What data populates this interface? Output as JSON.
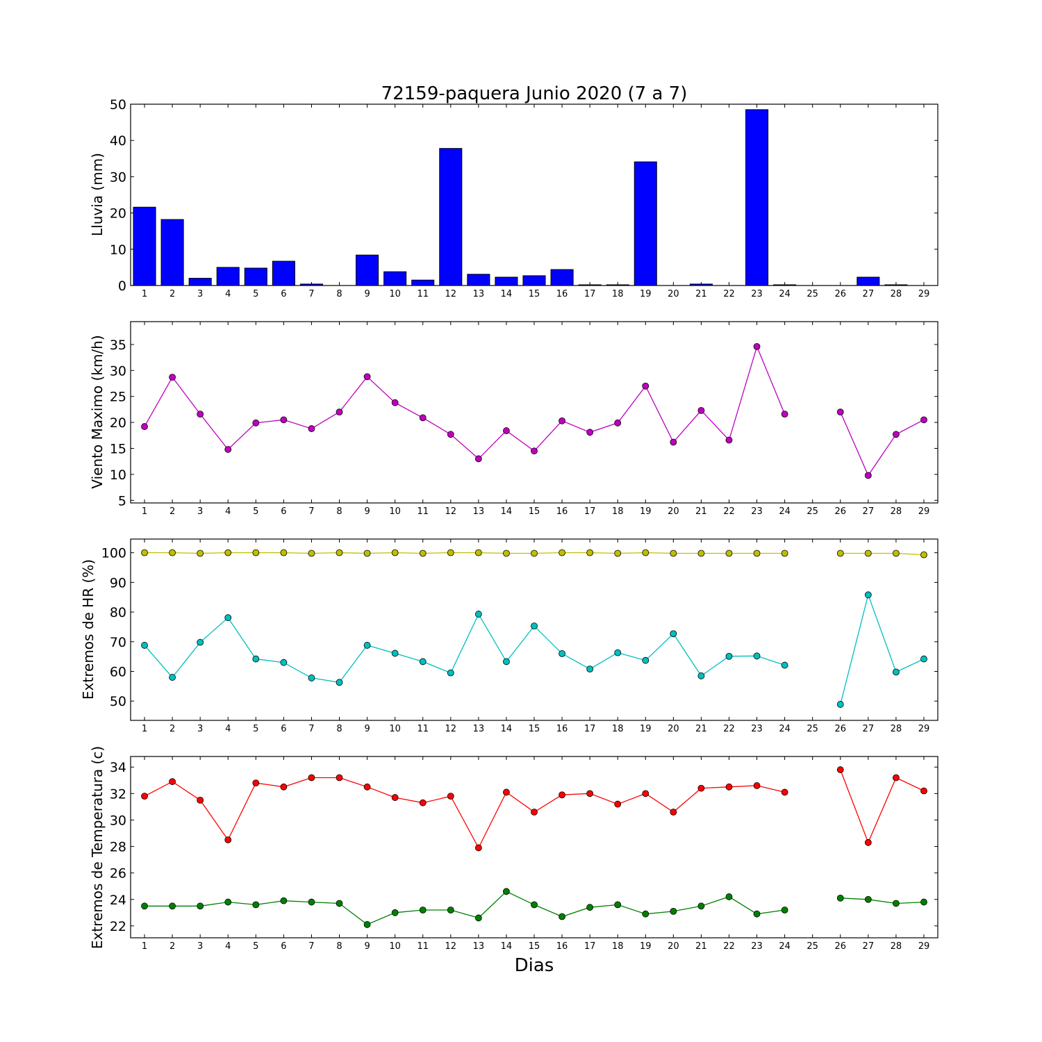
{
  "figure": {
    "title": "72159-paquera Junio 2020  (7 a 7)",
    "xlabel": "Dias"
  },
  "chart_data": [
    {
      "type": "bar",
      "name": "rain",
      "ylabel": "Lluvia (mm)",
      "ylim": [
        0,
        50
      ],
      "yticks": [
        0,
        10,
        20,
        30,
        40,
        50
      ],
      "color": "#0000ff",
      "categories": [
        1,
        2,
        3,
        4,
        5,
        6,
        7,
        8,
        9,
        10,
        11,
        12,
        13,
        14,
        15,
        16,
        17,
        18,
        19,
        20,
        21,
        22,
        23,
        24,
        25,
        26,
        27,
        28,
        29
      ],
      "values": [
        21.6,
        18.2,
        2.0,
        5.0,
        4.8,
        6.7,
        0.4,
        0,
        8.4,
        3.8,
        1.5,
        37.8,
        3.1,
        2.3,
        2.7,
        4.4,
        0.2,
        0.2,
        34.1,
        0,
        0.4,
        0,
        48.5,
        0.2,
        0,
        0,
        2.3,
        0.2,
        0
      ],
      "grid": false
    },
    {
      "type": "line",
      "name": "wind",
      "ylabel": "Viento Maximo (km/h)",
      "ylim": [
        4.5,
        39.4
      ],
      "yticks": [
        5,
        10,
        15,
        20,
        25,
        30,
        35
      ],
      "x": [
        1,
        2,
        3,
        4,
        5,
        6,
        7,
        8,
        9,
        10,
        11,
        12,
        13,
        14,
        15,
        16,
        17,
        18,
        19,
        20,
        21,
        22,
        23,
        24,
        25,
        26,
        27,
        28,
        29
      ],
      "series": [
        {
          "color": "#bf00bf",
          "values": [
            19.2,
            28.7,
            21.6,
            14.8,
            19.9,
            20.5,
            18.8,
            22.0,
            28.8,
            23.8,
            20.9,
            17.7,
            13.0,
            18.4,
            14.5,
            20.3,
            18.1,
            19.9,
            27.0,
            16.2,
            22.3,
            16.6,
            34.6,
            21.6,
            null,
            22.0,
            9.8,
            17.7,
            20.5
          ]
        }
      ],
      "grid": false
    },
    {
      "type": "line",
      "name": "humidity",
      "ylabel": "Extremos de HR (%)",
      "ylim": [
        43.5,
        104.6
      ],
      "yticks": [
        50,
        60,
        70,
        80,
        90,
        100
      ],
      "x": [
        1,
        2,
        3,
        4,
        5,
        6,
        7,
        8,
        9,
        10,
        11,
        12,
        13,
        14,
        15,
        16,
        17,
        18,
        19,
        20,
        21,
        22,
        23,
        24,
        25,
        26,
        27,
        28,
        29
      ],
      "series": [
        {
          "color": "#bfbf00",
          "values": [
            100,
            100,
            99.8,
            100,
            100,
            100,
            99.8,
            100,
            99.8,
            100,
            99.8,
            100,
            100,
            99.8,
            99.8,
            100,
            100,
            99.8,
            100,
            99.8,
            99.8,
            99.8,
            99.8,
            99.8,
            null,
            99.8,
            99.8,
            99.8,
            99.3
          ]
        },
        {
          "color": "#00bfbf",
          "values": [
            68.8,
            58.0,
            69.8,
            78.1,
            64.2,
            63.0,
            57.8,
            56.3,
            68.8,
            66.1,
            63.3,
            59.5,
            79.3,
            63.3,
            75.3,
            66.0,
            60.8,
            66.3,
            63.7,
            72.7,
            58.5,
            65.1,
            65.2,
            62.1,
            null,
            48.9,
            85.8,
            59.8,
            64.2
          ]
        }
      ],
      "grid": false
    },
    {
      "type": "line",
      "name": "temperature",
      "ylabel": "Extremos de Temperatura (c)",
      "ylim": [
        21.1,
        34.8
      ],
      "yticks": [
        22,
        24,
        26,
        28,
        30,
        32,
        34
      ],
      "x": [
        1,
        2,
        3,
        4,
        5,
        6,
        7,
        8,
        9,
        10,
        11,
        12,
        13,
        14,
        15,
        16,
        17,
        18,
        19,
        20,
        21,
        22,
        23,
        24,
        25,
        26,
        27,
        28,
        29
      ],
      "series": [
        {
          "color": "#ff0000",
          "values": [
            31.8,
            32.9,
            31.5,
            28.5,
            32.8,
            32.5,
            33.2,
            33.2,
            32.5,
            31.7,
            31.3,
            31.8,
            27.9,
            32.1,
            30.6,
            31.9,
            32.0,
            31.2,
            32.0,
            30.6,
            32.4,
            32.5,
            32.6,
            32.1,
            null,
            33.8,
            28.3,
            33.2,
            32.2
          ]
        },
        {
          "color": "#008000",
          "values": [
            23.5,
            23.5,
            23.5,
            23.8,
            23.6,
            23.9,
            23.8,
            23.7,
            22.1,
            23.0,
            23.2,
            23.2,
            22.6,
            24.6,
            23.6,
            22.7,
            23.4,
            23.6,
            22.9,
            23.1,
            23.5,
            24.2,
            22.9,
            23.2,
            null,
            24.1,
            24.0,
            23.7,
            23.8
          ]
        }
      ],
      "grid": false
    }
  ]
}
